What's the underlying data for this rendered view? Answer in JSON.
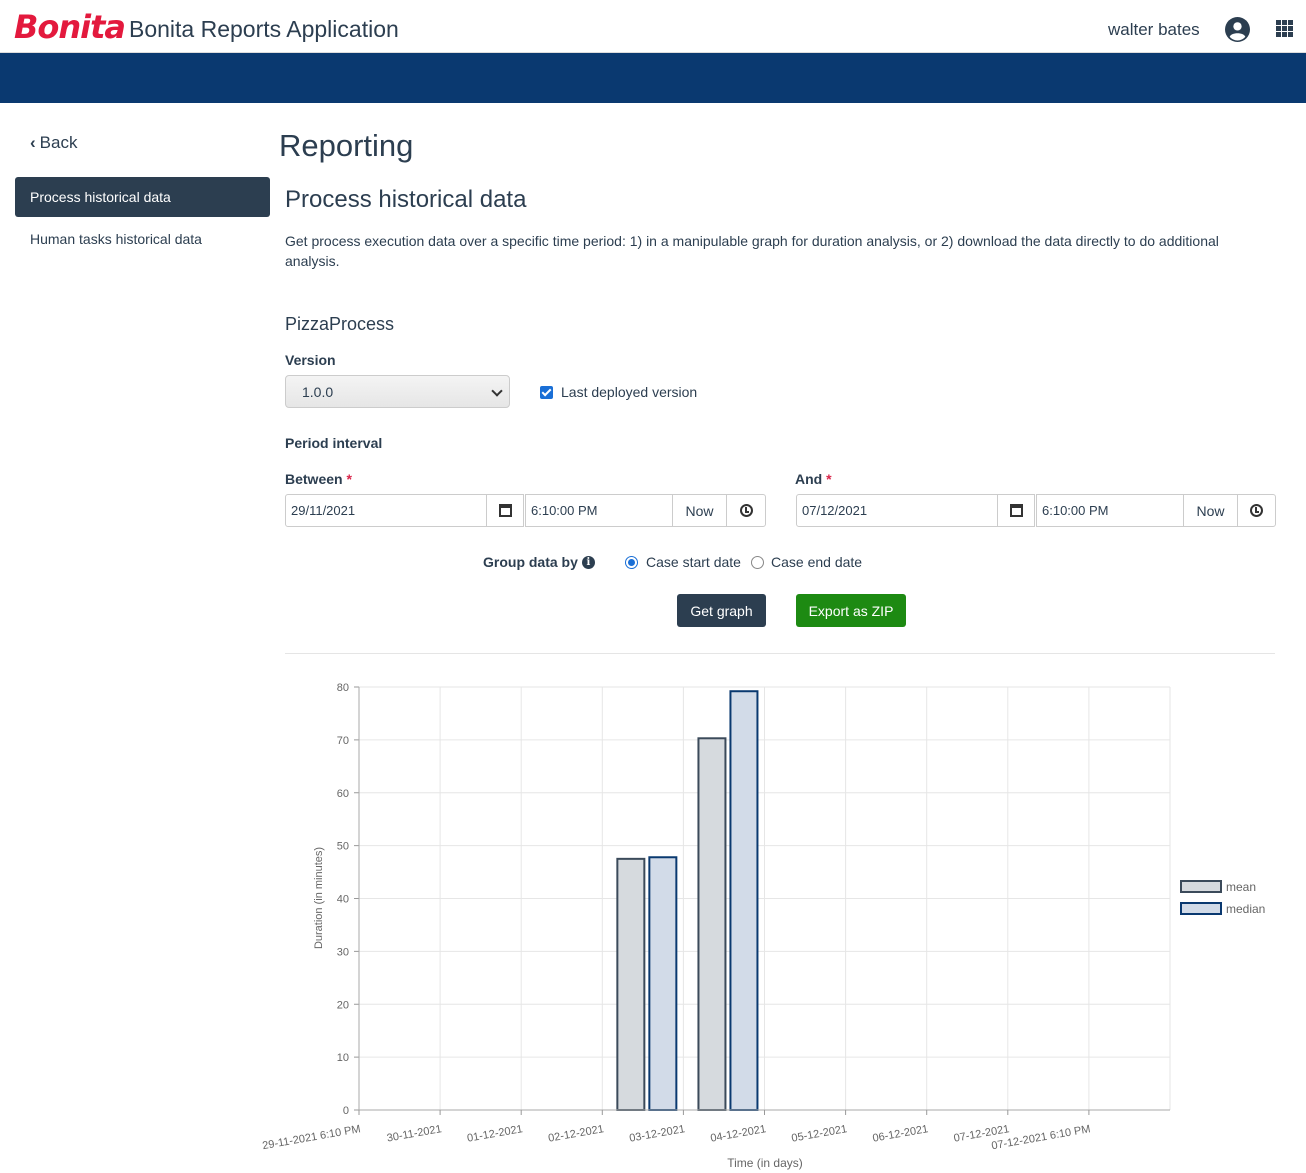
{
  "header": {
    "logo": "Bonita",
    "app_title": "Bonita Reports Application",
    "user_name": "walter bates",
    "user_icon": "user-circle-icon",
    "apps_icon": "apps-grid-icon"
  },
  "sidebar": {
    "back_label": "Back",
    "items": [
      {
        "label": "Process historical data",
        "active": true
      },
      {
        "label": "Human tasks historical data",
        "active": false
      }
    ]
  },
  "main": {
    "page_title": "Reporting",
    "section_title": "Process historical data",
    "description": "Get process execution data over a specific time period: 1) in a manipulable graph for duration analysis, or 2) download the data directly to do additional analysis.",
    "process_name": "PizzaProcess",
    "version_label": "Version",
    "version_value": "1.0.0",
    "last_deployed_label": "Last deployed version",
    "last_deployed_checked": true,
    "period_label": "Period interval",
    "between_label": "Between",
    "and_label": "And",
    "required_mark": "*",
    "between_date": "29/11/2021",
    "between_time": "6:10:00 PM",
    "and_date": "07/12/2021",
    "and_time": "6:10:00 PM",
    "now_label": "Now",
    "group_by_label": "Group data by",
    "group_options": [
      {
        "label": "Case start date",
        "selected": true
      },
      {
        "label": "Case end date",
        "selected": false
      }
    ],
    "get_graph_label": "Get graph",
    "export_zip_label": "Export as ZIP"
  },
  "chart_data": {
    "type": "bar",
    "categories": [
      "29-11-2021 6:10 PM",
      "30-11-2021",
      "01-12-2021",
      "02-12-2021",
      "03-12-2021",
      "04-12-2021",
      "05-12-2021",
      "06-12-2021",
      "07-12-2021",
      "07-12-2021 6:10 PM"
    ],
    "series": [
      {
        "name": "mean",
        "values": [
          null,
          null,
          null,
          47.5,
          70.3,
          null,
          null,
          null,
          null,
          null
        ],
        "color": "#3b4a5a",
        "fill": "#d6dade"
      },
      {
        "name": "median",
        "values": [
          null,
          null,
          null,
          47.8,
          79.2,
          null,
          null,
          null,
          null,
          null
        ],
        "color": "#0a3970",
        "fill": "#d2dbe8"
      }
    ],
    "xlabel": "Time (in days)",
    "ylabel": "Duration (in minutes)",
    "ylim": [
      0,
      80
    ],
    "yticks": [
      0,
      10,
      20,
      30,
      40,
      50,
      60,
      70,
      80
    ],
    "grid": true,
    "legend": "right"
  }
}
